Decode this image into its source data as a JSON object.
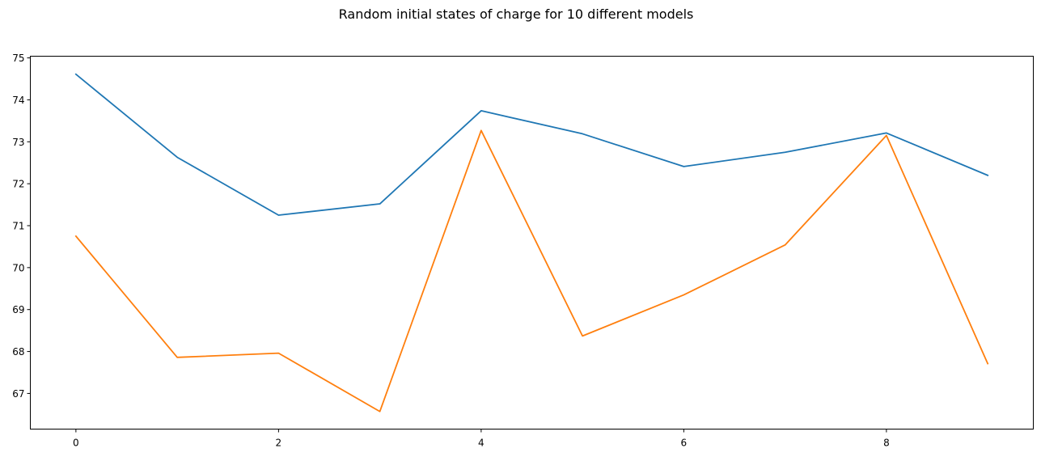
{
  "chart_data": {
    "type": "line",
    "title": "Random initial states of charge for 10 different models",
    "xlabel": "",
    "ylabel": "",
    "x": [
      0,
      1,
      2,
      3,
      4,
      5,
      6,
      7,
      8,
      9
    ],
    "xticks": [
      0,
      2,
      4,
      6,
      8
    ],
    "yticks": [
      67,
      68,
      69,
      70,
      71,
      72,
      73,
      74,
      75
    ],
    "xlim": [
      -0.45,
      9.45
    ],
    "ylim": [
      66.15,
      75.04
    ],
    "grid": false,
    "legend": "none",
    "series": [
      {
        "color": "#1f77b4",
        "values": [
          74.61,
          72.63,
          71.25,
          71.52,
          73.74,
          73.19,
          72.41,
          72.75,
          73.21,
          72.2
        ]
      },
      {
        "color": "#ff7f0e",
        "values": [
          70.75,
          67.86,
          67.96,
          66.57,
          73.27,
          68.37,
          69.35,
          70.54,
          73.15,
          67.71
        ]
      }
    ]
  }
}
